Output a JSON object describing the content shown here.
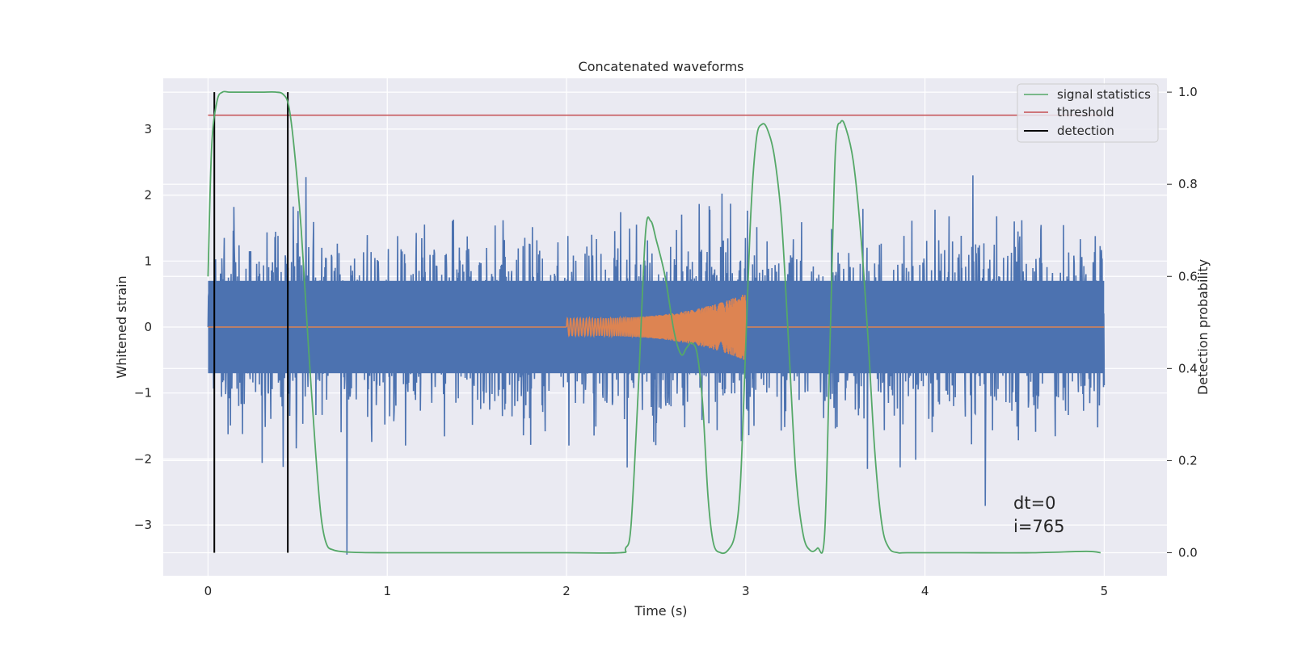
{
  "chart_data": {
    "type": "line",
    "title": "Concatenated waveforms",
    "xlabel": "Time (s)",
    "ylabel": "Whitened strain",
    "y2label": "Detection probability",
    "xlim": [
      -0.25,
      5.35
    ],
    "ylim": [
      -3.77,
      3.77
    ],
    "y2lim": [
      -0.05,
      1.03
    ],
    "xticks": [
      0,
      1,
      2,
      3,
      4,
      5
    ],
    "xtick_labels": [
      "0",
      "1",
      "2",
      "3",
      "4",
      "5"
    ],
    "yticks": [
      -3,
      -2,
      -1,
      0,
      1,
      2,
      3
    ],
    "ytick_labels": [
      "−3",
      "−2",
      "−1",
      "0",
      "1",
      "2",
      "3"
    ],
    "y2ticks": [
      0.0,
      0.2,
      0.4,
      0.6,
      0.8,
      1.0
    ],
    "y2tick_labels": [
      "0.0",
      "0.2",
      "0.4",
      "0.6",
      "0.8",
      "1.0"
    ],
    "grid": true,
    "legend_position": "top-right",
    "background": "#eaeaf2",
    "series": [
      {
        "name": "",
        "axis": "left",
        "color": "#4c72b0",
        "description_kind": "noise",
        "x_range": [
          0,
          5
        ]
      },
      {
        "name": "",
        "axis": "left",
        "color": "#dd8452",
        "description_kind": "injection",
        "x_range": [
          0,
          5
        ],
        "chirp_start": 2.0,
        "chirp_end": 3.0
      },
      {
        "name": "signal statistics",
        "axis": "right",
        "color": "#55a868",
        "x": [
          0,
          0.02,
          0.05,
          0.08,
          0.12,
          0.2,
          0.3,
          0.38,
          0.42,
          0.45,
          0.48,
          0.52,
          0.56,
          0.6,
          0.63,
          0.66,
          0.7,
          0.8,
          1.0,
          1.5,
          2.0,
          2.3,
          2.33,
          2.36,
          2.4,
          2.44,
          2.47,
          2.5,
          2.55,
          2.6,
          2.64,
          2.67,
          2.7,
          2.73,
          2.76,
          2.79,
          2.82,
          2.86,
          2.9,
          2.94,
          2.97,
          3.0,
          3.03,
          3.06,
          3.09,
          3.12,
          3.16,
          3.2,
          3.24,
          3.28,
          3.32,
          3.36,
          3.4,
          3.44,
          3.47,
          3.5,
          3.53,
          3.56,
          3.6,
          3.64,
          3.68,
          3.72,
          3.76,
          3.8,
          3.85,
          3.9,
          4.2,
          4.6,
          4.9,
          4.98
        ],
        "y": [
          0.6,
          0.88,
          0.98,
          1.0,
          1.0,
          1.0,
          1.0,
          1.0,
          0.995,
          0.97,
          0.88,
          0.7,
          0.45,
          0.22,
          0.08,
          0.02,
          0.006,
          0.001,
          0.0,
          0.0,
          0.0,
          0.0,
          0.01,
          0.06,
          0.35,
          0.69,
          0.72,
          0.68,
          0.6,
          0.48,
          0.43,
          0.445,
          0.455,
          0.43,
          0.32,
          0.12,
          0.02,
          0.0,
          0.005,
          0.04,
          0.15,
          0.45,
          0.75,
          0.9,
          0.93,
          0.92,
          0.86,
          0.72,
          0.45,
          0.17,
          0.04,
          0.005,
          0.01,
          0.04,
          0.45,
          0.87,
          0.935,
          0.92,
          0.85,
          0.7,
          0.48,
          0.22,
          0.06,
          0.01,
          0.0,
          0.0,
          0.0,
          0.0,
          0.003,
          0.0
        ]
      },
      {
        "name": "threshold",
        "axis": "right",
        "color": "#c44e52",
        "x": [
          0,
          5
        ],
        "y": [
          0.95,
          0.95
        ]
      },
      {
        "name": "detection",
        "axis": "right",
        "color": "#000000",
        "x": [
          0.035,
          0.445
        ],
        "y_span": [
          0.0,
          1.0
        ]
      }
    ],
    "annotations": [
      "dt=0",
      "i=765"
    ]
  }
}
